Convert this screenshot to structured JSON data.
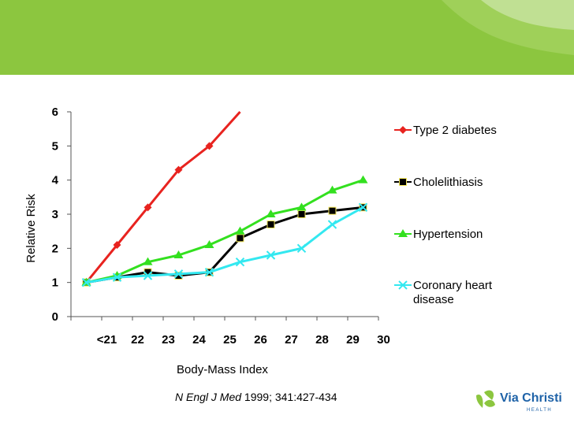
{
  "colors": {
    "band": "#8cc63f",
    "band_light": "#b5dc7a",
    "logo_green": "#8cc63f",
    "logo_blue": "#1f63a8"
  },
  "citation": {
    "journal": "N Engl J Med",
    "details": " 1999; 341:427-434"
  },
  "logo": {
    "name": "Via Christi",
    "sub": "HEALTH"
  },
  "chart_data": {
    "type": "line",
    "xlabel": "Body-Mass Index",
    "ylabel": "Relative Risk",
    "categories": [
      "<21",
      "22",
      "23",
      "24",
      "25",
      "26",
      "27",
      "28",
      "29",
      "30"
    ],
    "ylim": [
      0,
      6
    ],
    "yticks": [
      "0",
      "1",
      "2",
      "3",
      "4",
      "5",
      "6"
    ],
    "grid": false,
    "legend_position": "right",
    "series": [
      {
        "name": "Type 2 diabetes",
        "color": "#e8231f",
        "marker": "diamond",
        "values": [
          1,
          2.1,
          3.2,
          4.3,
          5.0,
          6.0,
          null,
          null,
          null,
          null
        ]
      },
      {
        "name": "Cholelithiasis",
        "color": "#000000",
        "marker": "square",
        "values": [
          1,
          1.15,
          1.3,
          1.2,
          1.3,
          2.3,
          2.7,
          3.0,
          3.1,
          3.2
        ]
      },
      {
        "name": "Hypertension",
        "color": "#33e01f",
        "marker": "triangle",
        "values": [
          1,
          1.2,
          1.6,
          1.8,
          2.1,
          2.5,
          3.0,
          3.2,
          3.7,
          4.0
        ]
      },
      {
        "name": "Coronary heart disease",
        "color": "#33e8f0",
        "marker": "x",
        "values": [
          1,
          1.15,
          1.2,
          1.25,
          1.3,
          1.6,
          1.8,
          2.0,
          2.7,
          3.2
        ]
      }
    ],
    "legend_labels": [
      [
        "Type 2 diabetes"
      ],
      [
        "Cholelithiasis"
      ],
      [
        "Hypertension"
      ],
      [
        "Coronary heart",
        "disease"
      ]
    ]
  }
}
